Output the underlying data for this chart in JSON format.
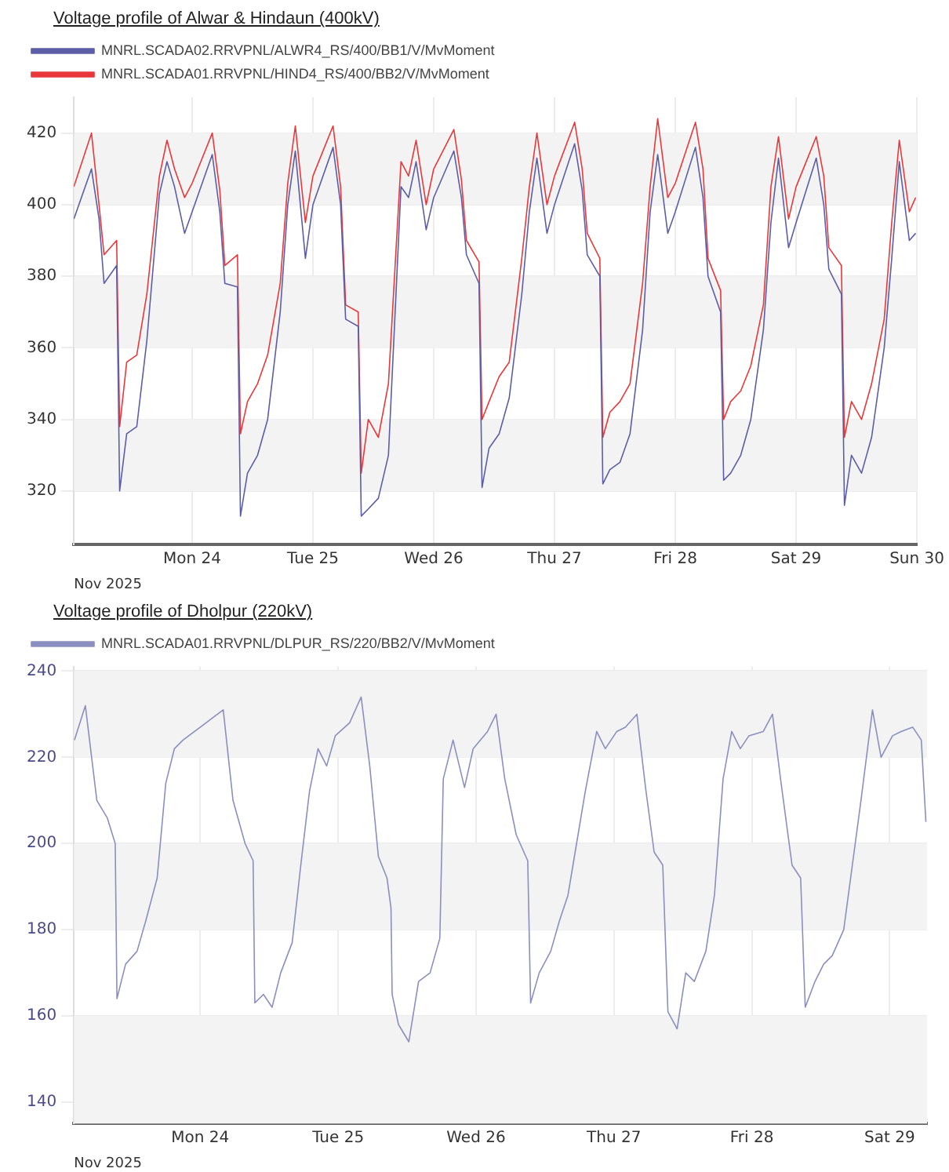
{
  "chart_data": [
    {
      "type": "line",
      "title": "Voltage profile of Alwar & Hindaun (400kV)",
      "xlabel": "Nov 2025",
      "legend": "top left",
      "grid": true,
      "xlim": [
        "2025-11-23T00:30",
        "2025-11-30T00:00"
      ],
      "xticks": [
        {
          "value": "2025-11-24T00:00",
          "label": "Mon 24"
        },
        {
          "value": "2025-11-25T00:00",
          "label": "Tue 25"
        },
        {
          "value": "2025-11-26T00:00",
          "label": "Wed 26"
        },
        {
          "value": "2025-11-27T00:00",
          "label": "Thu 27"
        },
        {
          "value": "2025-11-28T00:00",
          "label": "Fri 28"
        },
        {
          "value": "2025-11-29T00:00",
          "label": "Sat 29"
        },
        {
          "value": "2025-11-30T00:00",
          "label": "Sun 30"
        }
      ],
      "ylim": [
        305,
        430
      ],
      "yticks": [
        320,
        340,
        360,
        380,
        400,
        420
      ],
      "bands": [
        {
          "axis": "y",
          "from": 320,
          "to": 340,
          "color": "#f3f3f3"
        },
        {
          "axis": "y",
          "from": 360,
          "to": 380,
          "color": "#f3f3f3"
        },
        {
          "axis": "y",
          "from": 400,
          "to": 420,
          "color": "#f3f3f3"
        }
      ],
      "x": [
        "2025-11-23T00:30",
        "2025-11-23T04:00",
        "2025-11-23T05:30",
        "2025-11-23T06:30",
        "2025-11-23T09:00",
        "2025-11-23T09:36",
        "2025-11-23T11:00",
        "2025-11-23T13:00",
        "2025-11-23T15:00",
        "2025-11-23T17:30",
        "2025-11-23T19:00",
        "2025-11-23T20:30",
        "2025-11-23T22:30",
        "2025-11-24T00:00",
        "2025-11-24T04:00",
        "2025-11-24T05:30",
        "2025-11-24T06:30",
        "2025-11-24T09:00",
        "2025-11-24T09:36",
        "2025-11-24T11:00",
        "2025-11-24T13:00",
        "2025-11-24T15:00",
        "2025-11-24T17:30",
        "2025-11-24T19:00",
        "2025-11-24T20:30",
        "2025-11-24T22:30",
        "2025-11-25T00:00",
        "2025-11-25T04:00",
        "2025-11-25T05:30",
        "2025-11-25T06:30",
        "2025-11-25T09:00",
        "2025-11-25T09:36",
        "2025-11-25T11:00",
        "2025-11-25T13:00",
        "2025-11-25T15:00",
        "2025-11-25T17:30",
        "2025-11-25T19:00",
        "2025-11-25T20:30",
        "2025-11-25T22:30",
        "2025-11-26T00:00",
        "2025-11-26T04:00",
        "2025-11-26T05:30",
        "2025-11-26T06:30",
        "2025-11-26T09:00",
        "2025-11-26T09:36",
        "2025-11-26T11:00",
        "2025-11-26T13:00",
        "2025-11-26T15:00",
        "2025-11-26T17:30",
        "2025-11-26T19:00",
        "2025-11-26T20:30",
        "2025-11-26T22:30",
        "2025-11-27T00:00",
        "2025-11-27T04:00",
        "2025-11-27T05:30",
        "2025-11-27T06:30",
        "2025-11-27T09:00",
        "2025-11-27T09:36",
        "2025-11-27T11:00",
        "2025-11-27T13:00",
        "2025-11-27T15:00",
        "2025-11-27T17:30",
        "2025-11-27T19:00",
        "2025-11-27T20:30",
        "2025-11-27T22:30",
        "2025-11-28T00:00",
        "2025-11-28T04:00",
        "2025-11-28T05:30",
        "2025-11-28T06:30",
        "2025-11-28T09:00",
        "2025-11-28T09:36",
        "2025-11-28T11:00",
        "2025-11-28T13:00",
        "2025-11-28T15:00",
        "2025-11-28T17:30",
        "2025-11-28T19:00",
        "2025-11-28T20:30",
        "2025-11-28T22:30",
        "2025-11-29T00:00",
        "2025-11-29T04:00",
        "2025-11-29T05:30",
        "2025-11-29T06:30",
        "2025-11-29T09:00",
        "2025-11-29T09:36",
        "2025-11-29T11:00",
        "2025-11-29T13:00",
        "2025-11-29T15:00",
        "2025-11-29T17:30",
        "2025-11-29T19:00",
        "2025-11-29T20:30",
        "2025-11-29T22:30",
        "2025-11-29T23:45"
      ],
      "series": [
        {
          "name": "MNRL.SCADA02.RRVPNL/ALWR4_RS/400/BB1/V/MvMoment",
          "color": "#5b5ea6",
          "values": [
            396,
            410,
            396,
            378,
            383,
            320,
            336,
            338,
            362,
            403,
            412,
            405,
            392,
            398,
            414,
            398,
            378,
            377,
            313,
            325,
            330,
            340,
            370,
            400,
            415,
            385,
            400,
            416,
            400,
            368,
            366,
            313,
            315,
            318,
            330,
            405,
            402,
            412,
            393,
            402,
            415,
            402,
            386,
            378,
            321,
            332,
            336,
            346,
            375,
            398,
            413,
            392,
            400,
            417,
            404,
            386,
            380,
            322,
            326,
            328,
            336,
            365,
            398,
            414,
            392,
            398,
            416,
            402,
            380,
            370,
            323,
            325,
            330,
            340,
            365,
            395,
            413,
            388,
            395,
            413,
            400,
            382,
            375,
            316,
            330,
            325,
            335,
            360,
            385,
            412,
            390,
            392
          ]
        },
        {
          "name": "MNRL.SCADA01.RRVPNL/HIND4_RS/400/BB2/V/MvMoment",
          "color": "#e8383b",
          "values": [
            405,
            420,
            400,
            386,
            390,
            338,
            356,
            358,
            375,
            408,
            418,
            410,
            402,
            406,
            420,
            404,
            383,
            386,
            336,
            345,
            350,
            358,
            378,
            406,
            422,
            395,
            408,
            422,
            405,
            372,
            370,
            325,
            340,
            335,
            350,
            412,
            408,
            418,
            400,
            410,
            421,
            407,
            390,
            384,
            340,
            345,
            352,
            356,
            385,
            405,
            420,
            400,
            408,
            423,
            410,
            392,
            385,
            335,
            342,
            345,
            350,
            378,
            405,
            424,
            402,
            406,
            423,
            410,
            385,
            376,
            340,
            345,
            348,
            355,
            372,
            405,
            419,
            396,
            405,
            419,
            408,
            388,
            383,
            335,
            345,
            340,
            350,
            368,
            395,
            418,
            398,
            402
          ]
        }
      ]
    },
    {
      "type": "line",
      "title": "Voltage profile of Dholpur (220kV)",
      "xlabel": "Nov 2025",
      "legend": "top left",
      "grid": true,
      "xlim": [
        "2025-11-23T02:00",
        "2025-11-29T06:30"
      ],
      "xticks": [
        {
          "value": "2025-11-24T00:00",
          "label": "Mon 24"
        },
        {
          "value": "2025-11-25T00:00",
          "label": "Tue 25"
        },
        {
          "value": "2025-11-26T00:00",
          "label": "Wed 26"
        },
        {
          "value": "2025-11-27T00:00",
          "label": "Thu 27"
        },
        {
          "value": "2025-11-28T00:00",
          "label": "Fri 28"
        },
        {
          "value": "2025-11-29T00:00",
          "label": "Sat 29"
        }
      ],
      "ylim": [
        135,
        241
      ],
      "yticks": [
        140,
        160,
        180,
        200,
        220,
        240
      ],
      "bands": [
        {
          "axis": "y",
          "from": 135,
          "to": 160,
          "color": "#f3f3f3"
        },
        {
          "axis": "y",
          "from": 180,
          "to": 200,
          "color": "#f3f3f3"
        },
        {
          "axis": "y",
          "from": 220,
          "to": 240,
          "color": "#f3f3f3"
        }
      ],
      "series": [
        {
          "name": "MNRL.SCADA01.RRVPNL/DLPUR_RS/220/BB2/V/MvMoment",
          "color": "#8a8fc0",
          "x": [
            "2025-11-23T02:06",
            "2025-11-23T04:00",
            "2025-11-23T06:00",
            "2025-11-23T07:48",
            "2025-11-23T09:12",
            "2025-11-23T09:30",
            "2025-11-23T11:00",
            "2025-11-23T13:00",
            "2025-11-23T14:30",
            "2025-11-23T16:30",
            "2025-11-23T18:00",
            "2025-11-23T19:30",
            "2025-11-23T21:00",
            "2025-11-23T23:00",
            "2025-11-24T02:00",
            "2025-11-24T04:00",
            "2025-11-24T05:42",
            "2025-11-24T07:48",
            "2025-11-24T09:12",
            "2025-11-24T09:30",
            "2025-11-24T11:00",
            "2025-11-24T12:30",
            "2025-11-24T14:00",
            "2025-11-24T16:00",
            "2025-11-24T17:30",
            "2025-11-24T19:00",
            "2025-11-24T20:30",
            "2025-11-24T22:00",
            "2025-11-24T23:30",
            "2025-11-25T02:00",
            "2025-11-25T04:00",
            "2025-11-25T05:30",
            "2025-11-25T07:00",
            "2025-11-25T08:30",
            "2025-11-25T09:12",
            "2025-11-25T09:24",
            "2025-11-25T10:30",
            "2025-11-25T12:18",
            "2025-11-25T14:00",
            "2025-11-25T16:00",
            "2025-11-25T17:42",
            "2025-11-25T18:18",
            "2025-11-25T20:00",
            "2025-11-25T22:00",
            "2025-11-25T23:30",
            "2025-11-26T02:00",
            "2025-11-26T03:30",
            "2025-11-26T05:00",
            "2025-11-26T07:00",
            "2025-11-26T09:00",
            "2025-11-26T09:30",
            "2025-11-26T11:00",
            "2025-11-26T13:00",
            "2025-11-26T14:30",
            "2025-11-26T16:00",
            "2025-11-26T17:00",
            "2025-11-26T19:00",
            "2025-11-26T21:00",
            "2025-11-26T22:30",
            "2025-11-27T00:30",
            "2025-11-27T02:00",
            "2025-11-27T04:00",
            "2025-11-27T05:30",
            "2025-11-27T07:00",
            "2025-11-27T08:30",
            "2025-11-27T09:24",
            "2025-11-27T11:00",
            "2025-11-27T12:30",
            "2025-11-27T14:00",
            "2025-11-27T16:00",
            "2025-11-27T17:30",
            "2025-11-27T19:00",
            "2025-11-27T20:30",
            "2025-11-27T22:00",
            "2025-11-27T23:30",
            "2025-11-28T02:00",
            "2025-11-28T03:36",
            "2025-11-28T05:00",
            "2025-11-28T07:00",
            "2025-11-28T08:30",
            "2025-11-28T09:18",
            "2025-11-28T11:00",
            "2025-11-28T12:30",
            "2025-11-28T14:00",
            "2025-11-28T16:00",
            "2025-11-28T17:30",
            "2025-11-28T19:00",
            "2025-11-28T21:00",
            "2025-11-28T22:30",
            "2025-11-29T00:30",
            "2025-11-29T02:00",
            "2025-11-29T04:00",
            "2025-11-29T05:30",
            "2025-11-29T06:18"
          ],
          "values": [
            224,
            232,
            210,
            206,
            200,
            164,
            172,
            175,
            182,
            192,
            214,
            222,
            224,
            226,
            229,
            231,
            210,
            200,
            196,
            163,
            165,
            162,
            170,
            177,
            195,
            212,
            222,
            218,
            225,
            228,
            234,
            218,
            197,
            192,
            185,
            165,
            158,
            154,
            168,
            170,
            178,
            215,
            224,
            213,
            222,
            226,
            230,
            215,
            202,
            196,
            163,
            170,
            175,
            182,
            188,
            196,
            212,
            226,
            222,
            226,
            227,
            230,
            213,
            198,
            195,
            161,
            157,
            170,
            168,
            175,
            188,
            215,
            226,
            222,
            225,
            226,
            230,
            215,
            195,
            192,
            162,
            168,
            172,
            174,
            180,
            195,
            210,
            231,
            220,
            225,
            226,
            227,
            224,
            205
          ]
        }
      ]
    }
  ]
}
